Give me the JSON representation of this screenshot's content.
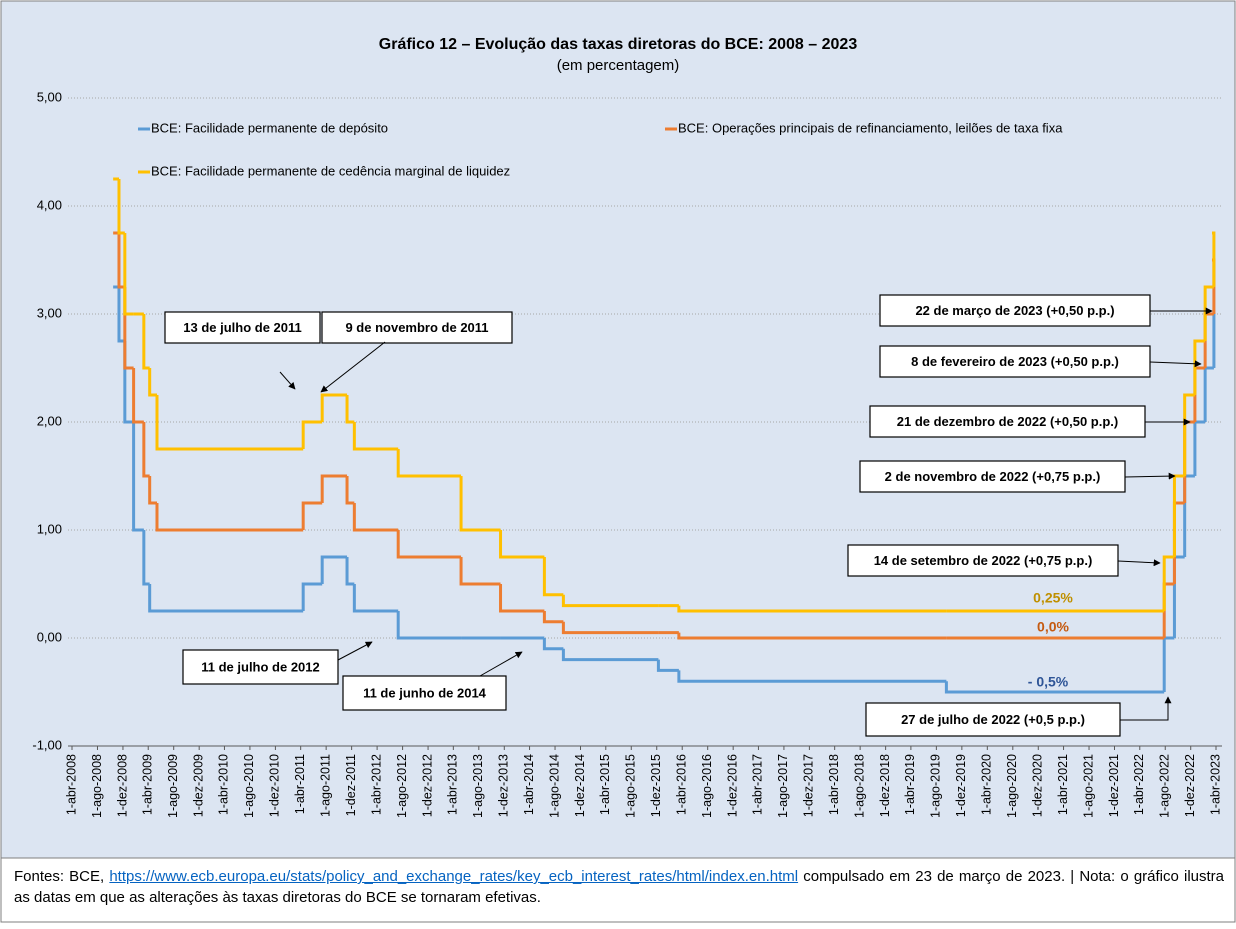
{
  "chart_data": {
    "type": "step",
    "title": "Gráfico 12 – Evolução das taxas diretoras do BCE: 2008 – 2023",
    "subtitle": "(em percentagem)",
    "x": [
      "2008-10-15",
      "2008-11-12",
      "2008-12-10",
      "2009-01-21",
      "2009-03-11",
      "2009-04-08",
      "2009-05-13",
      "2011-04-13",
      "2011-07-13",
      "2011-11-09",
      "2011-12-14",
      "2012-07-11",
      "2013-05-08",
      "2013-11-13",
      "2014-06-11",
      "2014-09-10",
      "2015-12-09",
      "2016-03-16",
      "2019-09-18",
      "2022-07-27",
      "2022-09-14",
      "2022-11-02",
      "2022-12-21",
      "2023-02-08",
      "2023-03-22"
    ],
    "series": [
      {
        "name": "BCE: Facilidade permanente de depósito",
        "color": "#5b9bd5",
        "values": [
          3.25,
          2.75,
          2.0,
          1.0,
          0.5,
          0.25,
          0.25,
          0.5,
          0.75,
          0.5,
          0.25,
          0,
          0,
          0,
          -0.1,
          -0.2,
          -0.3,
          -0.4,
          -0.5,
          0,
          0.75,
          1.5,
          2.0,
          2.5,
          3.0
        ]
      },
      {
        "name": "BCE: Operações principais de refinanciamento, leilões de taxa fixa",
        "color": "#ed7d31",
        "values": [
          3.75,
          3.25,
          2.5,
          2.0,
          1.5,
          1.25,
          1.0,
          1.25,
          1.5,
          1.25,
          1.0,
          0.75,
          0.5,
          0.25,
          0.15,
          0.05,
          0.05,
          0,
          0,
          0.5,
          1.25,
          2.0,
          2.5,
          3.0,
          3.5
        ]
      },
      {
        "name": "BCE: Facilidade permanente de cedência marginal de liquidez",
        "color": "#ffc000",
        "values": [
          4.25,
          3.75,
          3.0,
          3.0,
          2.5,
          2.25,
          1.75,
          2.0,
          2.25,
          2.0,
          1.75,
          1.5,
          1.0,
          0.75,
          0.4,
          0.3,
          0.3,
          0.25,
          0.25,
          0.75,
          1.5,
          2.25,
          2.75,
          3.25,
          3.75
        ]
      }
    ],
    "xlim": [
      "2008-04-01",
      "2023-04-01"
    ],
    "xticks": [
      {
        "value": "2008-04-01",
        "label": "1-abr-2008"
      },
      {
        "value": "2008-08-01",
        "label": "1-ago-2008"
      },
      {
        "value": "2008-12-01",
        "label": "1-dez-2008"
      },
      {
        "value": "2009-04-01",
        "label": "1-abr-2009"
      },
      {
        "value": "2009-08-01",
        "label": "1-ago-2009"
      },
      {
        "value": "2009-12-01",
        "label": "1-dez-2009"
      },
      {
        "value": "2010-04-01",
        "label": "1-abr-2010"
      },
      {
        "value": "2010-08-01",
        "label": "1-ago-2010"
      },
      {
        "value": "2010-12-01",
        "label": "1-dez-2010"
      },
      {
        "value": "2011-04-01",
        "label": "1-abr-2011"
      },
      {
        "value": "2011-08-01",
        "label": "1-ago-2011"
      },
      {
        "value": "2011-12-01",
        "label": "1-dez-2011"
      },
      {
        "value": "2012-04-01",
        "label": "1-abr-2012"
      },
      {
        "value": "2012-08-01",
        "label": "1-ago-2012"
      },
      {
        "value": "2012-12-01",
        "label": "1-dez-2012"
      },
      {
        "value": "2013-04-01",
        "label": "1-abr-2013"
      },
      {
        "value": "2013-08-01",
        "label": "1-ago-2013"
      },
      {
        "value": "2013-12-01",
        "label": "1-dez-2013"
      },
      {
        "value": "2014-04-01",
        "label": "1-abr-2014"
      },
      {
        "value": "2014-08-01",
        "label": "1-ago-2014"
      },
      {
        "value": "2014-12-01",
        "label": "1-dez-2014"
      },
      {
        "value": "2015-04-01",
        "label": "1-abr-2015"
      },
      {
        "value": "2015-08-01",
        "label": "1-ago-2015"
      },
      {
        "value": "2015-12-01",
        "label": "1-dez-2015"
      },
      {
        "value": "2016-04-01",
        "label": "1-abr-2016"
      },
      {
        "value": "2016-08-01",
        "label": "1-ago-2016"
      },
      {
        "value": "2016-12-01",
        "label": "1-dez-2016"
      },
      {
        "value": "2017-04-01",
        "label": "1-abr-2017"
      },
      {
        "value": "2017-08-01",
        "label": "1-ago-2017"
      },
      {
        "value": "2017-12-01",
        "label": "1-dez-2017"
      },
      {
        "value": "2018-04-01",
        "label": "1-abr-2018"
      },
      {
        "value": "2018-08-01",
        "label": "1-ago-2018"
      },
      {
        "value": "2018-12-01",
        "label": "1-dez-2018"
      },
      {
        "value": "2019-04-01",
        "label": "1-abr-2019"
      },
      {
        "value": "2019-08-01",
        "label": "1-ago-2019"
      },
      {
        "value": "2019-12-01",
        "label": "1-dez-2019"
      },
      {
        "value": "2020-04-01",
        "label": "1-abr-2020"
      },
      {
        "value": "2020-08-01",
        "label": "1-ago-2020"
      },
      {
        "value": "2020-12-01",
        "label": "1-dez-2020"
      },
      {
        "value": "2021-04-01",
        "label": "1-abr-2021"
      },
      {
        "value": "2021-08-01",
        "label": "1-ago-2021"
      },
      {
        "value": "2021-12-01",
        "label": "1-dez-2021"
      },
      {
        "value": "2022-04-01",
        "label": "1-abr-2022"
      },
      {
        "value": "2022-08-01",
        "label": "1-ago-2022"
      },
      {
        "value": "2022-12-01",
        "label": "1-dez-2022"
      },
      {
        "value": "2023-04-01",
        "label": "1-abr-2023"
      }
    ],
    "ylim": [
      -1,
      5
    ],
    "yticks": [
      {
        "value": -1,
        "label": "-1,00"
      },
      {
        "value": 0,
        "label": "0,00"
      },
      {
        "value": 1,
        "label": "1,00"
      },
      {
        "value": 2,
        "label": "2,00"
      },
      {
        "value": 3,
        "label": "3,00"
      },
      {
        "value": 4,
        "label": "4,00"
      },
      {
        "value": 5,
        "label": "5,00"
      }
    ],
    "grid": true,
    "legend": "top",
    "annotations": [
      "13 de julho de 2011",
      "9 de novembro de 2011",
      "11 de julho de 2012",
      "11 de junho de 2014",
      "22 de março de 2023 (+0,50 p.p.)",
      "8 de fevereiro de 2023 (+0,50 p.p.)",
      "21 de dezembro de 2022 (+0,50 p.p.)",
      "2 de novembro de 2022 (+0,75 p.p.)",
      "14 de setembro de 2022 (+0,75 p.p.)",
      "27 de julho de 2022 (+0,5 p.p.)"
    ],
    "end_labels": [
      "- 0,5%",
      "0,0%",
      "0,25%"
    ]
  },
  "footer": {
    "source_label": "Fontes: BCE,",
    "link": "https://www.ecb.europa.eu/stats/policy_and_exchange_rates/key_ecb_interest_rates/html/index.en.html",
    "note": "compulsado em 23 de março de 2023. | Nota: o gráfico ilustra as datas em que as alterações às taxas diretoras do BCE se tornaram efetivas."
  }
}
